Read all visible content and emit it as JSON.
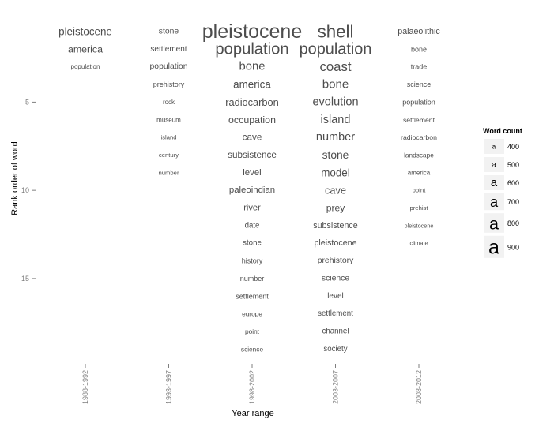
{
  "chart_data": {
    "type": "table",
    "xlabel": "Year range",
    "ylabel": "Rank order of word",
    "y_ticks": [
      5,
      10,
      15
    ],
    "y_range": [
      1,
      19
    ],
    "categories": [
      "1988-1992",
      "1993-1997",
      "1998-2002",
      "2003-2007",
      "2008-2012"
    ],
    "columns": [
      {
        "range": "1988-1992",
        "words": [
          {
            "rank": 1,
            "word": "pleistocene",
            "count": 560
          },
          {
            "rank": 2,
            "word": "america",
            "count": 530
          },
          {
            "rank": 3,
            "word": "population",
            "count": 400
          }
        ]
      },
      {
        "range": "1993-1997",
        "words": [
          {
            "rank": 1,
            "word": "stone",
            "count": 470
          },
          {
            "rank": 2,
            "word": "settlement",
            "count": 460
          },
          {
            "rank": 3,
            "word": "population",
            "count": 470
          },
          {
            "rank": 4,
            "word": "prehistory",
            "count": 430
          },
          {
            "rank": 5,
            "word": "rock",
            "count": 400
          },
          {
            "rank": 6,
            "word": "museum",
            "count": 400
          },
          {
            "rank": 7,
            "word": "island",
            "count": 390
          },
          {
            "rank": 8,
            "word": "century",
            "count": 390
          },
          {
            "rank": 9,
            "word": "number",
            "count": 390
          }
        ]
      },
      {
        "range": "1998-2002",
        "words": [
          {
            "rank": 1,
            "word": "pleistocene",
            "count": 900
          },
          {
            "rank": 2,
            "word": "population",
            "count": 760
          },
          {
            "rank": 3,
            "word": "bone",
            "count": 600
          },
          {
            "rank": 4,
            "word": "america",
            "count": 560
          },
          {
            "rank": 5,
            "word": "radiocarbon",
            "count": 540
          },
          {
            "rank": 6,
            "word": "occupation",
            "count": 530
          },
          {
            "rank": 7,
            "word": "cave",
            "count": 510
          },
          {
            "rank": 8,
            "word": "subsistence",
            "count": 510
          },
          {
            "rank": 9,
            "word": "level",
            "count": 500
          },
          {
            "rank": 10,
            "word": "paleoindian",
            "count": 500
          },
          {
            "rank": 11,
            "word": "river",
            "count": 490
          },
          {
            "rank": 12,
            "word": "date",
            "count": 450
          },
          {
            "rank": 13,
            "word": "stone",
            "count": 450
          },
          {
            "rank": 14,
            "word": "history",
            "count": 430
          },
          {
            "rank": 15,
            "word": "number",
            "count": 430
          },
          {
            "rank": 16,
            "word": "settlement",
            "count": 430
          },
          {
            "rank": 17,
            "word": "europe",
            "count": 410
          },
          {
            "rank": 18,
            "word": "point",
            "count": 410
          },
          {
            "rank": 19,
            "word": "science",
            "count": 410
          }
        ]
      },
      {
        "range": "2003-2007",
        "words": [
          {
            "rank": 1,
            "word": "shell",
            "count": 820
          },
          {
            "rank": 2,
            "word": "population",
            "count": 750
          },
          {
            "rank": 3,
            "word": "coast",
            "count": 660
          },
          {
            "rank": 4,
            "word": "bone",
            "count": 610
          },
          {
            "rank": 5,
            "word": "evolution",
            "count": 590
          },
          {
            "rank": 6,
            "word": "island",
            "count": 590
          },
          {
            "rank": 7,
            "word": "number",
            "count": 590
          },
          {
            "rank": 8,
            "word": "stone",
            "count": 570
          },
          {
            "rank": 9,
            "word": "model",
            "count": 560
          },
          {
            "rank": 10,
            "word": "cave",
            "count": 540
          },
          {
            "rank": 11,
            "word": "prey",
            "count": 520
          },
          {
            "rank": 12,
            "word": "subsistence",
            "count": 480
          },
          {
            "rank": 13,
            "word": "pleistocene",
            "count": 480
          },
          {
            "rank": 14,
            "word": "prehistory",
            "count": 470
          },
          {
            "rank": 15,
            "word": "science",
            "count": 470
          },
          {
            "rank": 16,
            "word": "level",
            "count": 460
          },
          {
            "rank": 17,
            "word": "settlement",
            "count": 450
          },
          {
            "rank": 18,
            "word": "channel",
            "count": 450
          },
          {
            "rank": 19,
            "word": "society",
            "count": 450
          }
        ]
      },
      {
        "range": "2008-2012",
        "words": [
          {
            "rank": 1,
            "word": "palaeolithic",
            "count": 480
          },
          {
            "rank": 2,
            "word": "bone",
            "count": 430
          },
          {
            "rank": 3,
            "word": "trade",
            "count": 430
          },
          {
            "rank": 4,
            "word": "science",
            "count": 430
          },
          {
            "rank": 5,
            "word": "population",
            "count": 430
          },
          {
            "rank": 6,
            "word": "settlement",
            "count": 420
          },
          {
            "rank": 7,
            "word": "radiocarbon",
            "count": 420
          },
          {
            "rank": 8,
            "word": "landscape",
            "count": 410
          },
          {
            "rank": 9,
            "word": "america",
            "count": 400
          },
          {
            "rank": 10,
            "word": "point",
            "count": 390
          },
          {
            "rank": 11,
            "word": "prehist",
            "count": 390
          },
          {
            "rank": 12,
            "word": "pleistocene",
            "count": 380
          },
          {
            "rank": 13,
            "word": "climate",
            "count": 380
          }
        ]
      }
    ],
    "legend": {
      "title": "Word count",
      "placement": "right",
      "glyph": "a",
      "entries": [
        400,
        500,
        600,
        700,
        800,
        900
      ]
    },
    "colors": {
      "word": "#4d4d4d",
      "tick": "#7f7f7f",
      "legend_key_bg": "#f2f2f2"
    }
  }
}
